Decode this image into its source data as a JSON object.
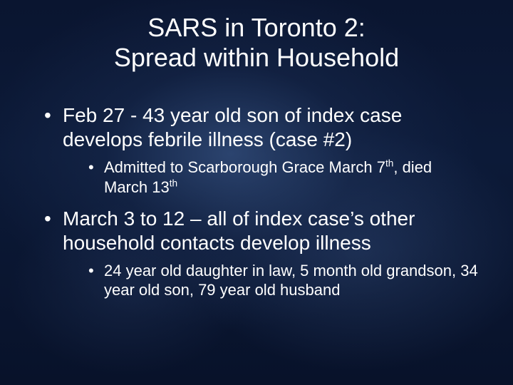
{
  "slide": {
    "background": {
      "base_gradient_top": "#0a1530",
      "base_gradient_mid": "#0c1a38",
      "base_gradient_bottom": "#08122a",
      "glow_primary": "rgba(60,90,140,0.65)",
      "glow_secondary": "rgba(50,75,120,0.45)",
      "glow_tertiary": "rgba(40,60,100,0.35)"
    },
    "text_color": "#ffffff",
    "font_family": "Arial",
    "title": {
      "line1": "SARS in Toronto 2:",
      "line2": "Spread within Household",
      "fontsize": 36,
      "align": "center",
      "weight": "normal"
    },
    "bullets": [
      {
        "text": "Feb 27 - 43 year old son of index case develops febrile illness (case #2)",
        "fontsize": 28,
        "sub": [
          {
            "text_pre": "Admitted to Scarborough Grace March 7",
            "sup1": "th",
            "text_mid": ", died March 13",
            "sup2": "th",
            "fontsize": 22
          }
        ]
      },
      {
        "text": "March 3 to 12 – all of index case’s other household contacts develop illness",
        "fontsize": 28,
        "sub": [
          {
            "text": "24 year old daughter in law, 5 month old grandson, 34 year old son, 79 year old husband",
            "fontsize": 22
          }
        ]
      }
    ]
  }
}
